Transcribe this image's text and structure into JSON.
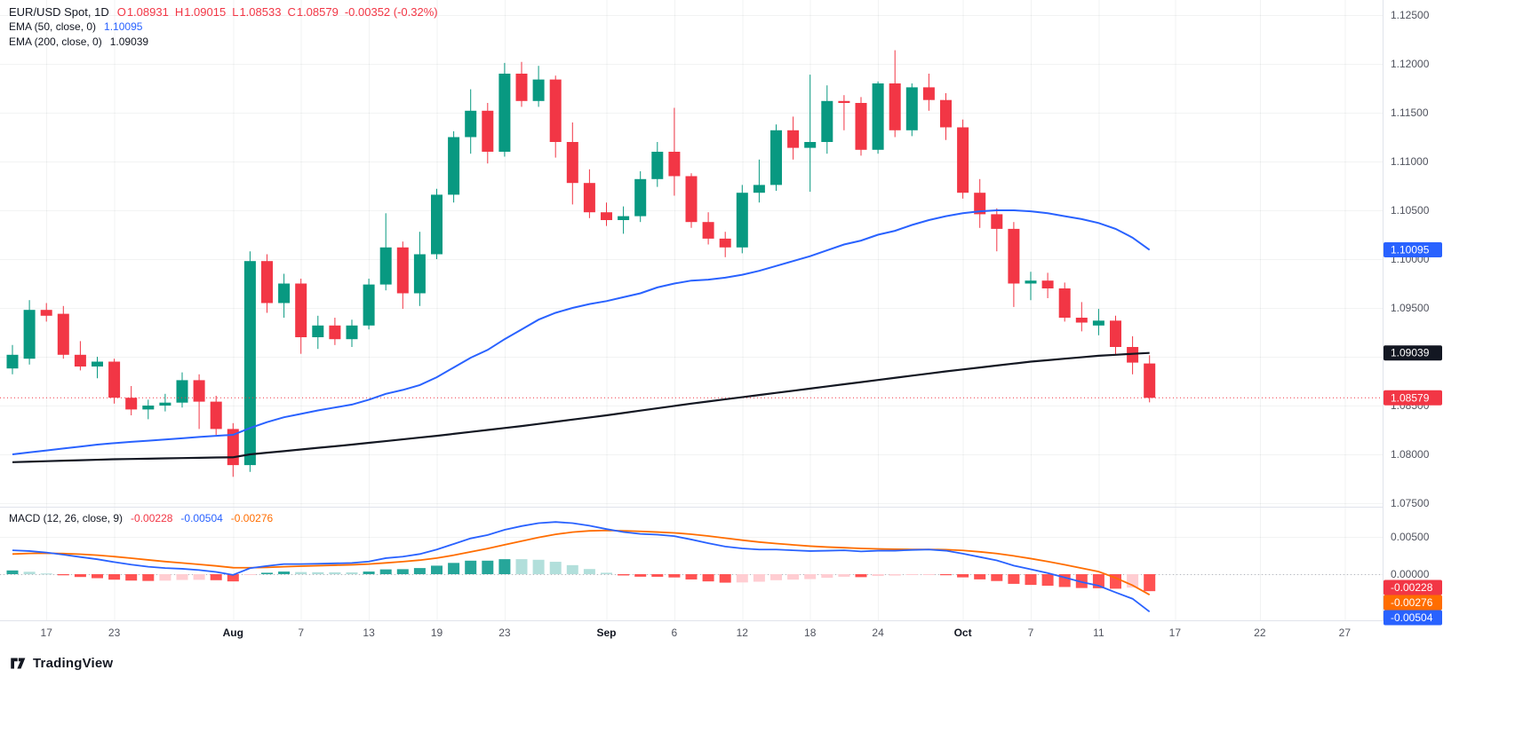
{
  "header": {
    "symbol_title": "EUR/USD Spot, 1D",
    "ohlc_color": "#F23645",
    "ohlc_items": [
      {
        "k": "O",
        "v": "1.08931"
      },
      {
        "k": "H",
        "v": "1.09015"
      },
      {
        "k": "L",
        "v": "1.08533"
      },
      {
        "k": "C",
        "v": "1.08579"
      }
    ],
    "change": "-0.00352 (-0.32%)",
    "indicators": [
      {
        "name": "EMA (50, close, 0)",
        "value": "1.10095",
        "color": "#2962FF"
      },
      {
        "name": "EMA (200, close, 0)",
        "value": "1.09039",
        "color": "#131722"
      }
    ]
  },
  "macd_legend": {
    "name": "MACD (12, 26, close, 9)",
    "values": [
      {
        "text": "-0.00228",
        "color": "#F23645"
      },
      {
        "text": "-0.00504",
        "color": "#2962FF"
      },
      {
        "text": "-0.00276",
        "color": "#FF6D00"
      }
    ]
  },
  "footer": {
    "logo_text": "TradingView"
  },
  "chart_data": [
    {
      "type": "candlestick",
      "title": "EUR/USD Spot, 1D",
      "colors": {
        "up": "#089981",
        "down": "#F23645"
      },
      "last_price": 1.08579,
      "ylim": [
        1.0747,
        1.1266
      ],
      "y_ticks": [
        1.125,
        1.12,
        1.115,
        1.11,
        1.105,
        1.1,
        1.095,
        1.09,
        1.085,
        1.08,
        1.075
      ],
      "x_ticks": [
        {
          "label": "17",
          "i": 2
        },
        {
          "label": "23",
          "i": 6
        },
        {
          "label": "Aug",
          "i": 13,
          "major": true
        },
        {
          "label": "7",
          "i": 17
        },
        {
          "label": "13",
          "i": 21
        },
        {
          "label": "19",
          "i": 25
        },
        {
          "label": "23",
          "i": 29
        },
        {
          "label": "Sep",
          "i": 35,
          "major": true
        },
        {
          "label": "6",
          "i": 39
        },
        {
          "label": "12",
          "i": 43
        },
        {
          "label": "18",
          "i": 47
        },
        {
          "label": "24",
          "i": 51
        },
        {
          "label": "Oct",
          "i": 56,
          "major": true
        },
        {
          "label": "7",
          "i": 60
        },
        {
          "label": "11",
          "i": 64
        },
        {
          "label": "17",
          "i": 68.5
        },
        {
          "label": "22",
          "i": 73.5
        },
        {
          "label": "27",
          "i": 78.5
        }
      ],
      "price_labels": [
        {
          "value": 1.10095,
          "bg": "#2962FF"
        },
        {
          "value": 1.09039,
          "bg": "#131722"
        },
        {
          "value": 1.08579,
          "bg": "#F23645",
          "dotted_line": true
        }
      ],
      "series": [
        {
          "name": "EURUSD",
          "type": "ohlc",
          "ohlc": [
            [
              1.0888,
              1.0912,
              1.0882,
              1.0902
            ],
            [
              1.0898,
              1.0958,
              1.0892,
              1.0948
            ],
            [
              1.0948,
              1.0955,
              1.0936,
              1.0942
            ],
            [
              1.0944,
              1.0952,
              1.0898,
              1.0902
            ],
            [
              1.0902,
              1.0916,
              1.0886,
              1.089
            ],
            [
              1.089,
              1.09,
              1.0878,
              1.0895
            ],
            [
              1.0895,
              1.0898,
              1.0852,
              1.0858
            ],
            [
              1.0858,
              1.087,
              1.084,
              1.0846
            ],
            [
              1.0846,
              1.0856,
              1.0836,
              1.085
            ],
            [
              1.085,
              1.0862,
              1.0844,
              1.0853
            ],
            [
              1.0853,
              1.0884,
              1.0848,
              1.0876
            ],
            [
              1.0876,
              1.0882,
              1.0826,
              1.0854
            ],
            [
              1.0854,
              1.086,
              1.082,
              1.0826
            ],
            [
              1.0826,
              1.0832,
              1.0777,
              1.0789
            ],
            [
              1.0789,
              1.1008,
              1.0782,
              1.0998
            ],
            [
              1.0998,
              1.1005,
              1.0945,
              1.0955
            ],
            [
              1.0955,
              1.0985,
              1.094,
              1.0975
            ],
            [
              1.0975,
              1.098,
              1.0903,
              1.092
            ],
            [
              1.092,
              1.0942,
              1.0908,
              1.0932
            ],
            [
              1.0932,
              1.094,
              1.0912,
              1.0918
            ],
            [
              1.0918,
              1.0938,
              1.091,
              1.0932
            ],
            [
              1.0932,
              1.098,
              1.0928,
              1.0974
            ],
            [
              1.0974,
              1.1047,
              1.0968,
              1.1012
            ],
            [
              1.1012,
              1.1018,
              1.0949,
              1.0965
            ],
            [
              1.0965,
              1.1028,
              1.0952,
              1.1005
            ],
            [
              1.1005,
              1.1072,
              1.1,
              1.1066
            ],
            [
              1.1066,
              1.1131,
              1.1058,
              1.1125
            ],
            [
              1.1125,
              1.1174,
              1.1108,
              1.1152
            ],
            [
              1.1152,
              1.116,
              1.1098,
              1.111
            ],
            [
              1.111,
              1.1201,
              1.1105,
              1.119
            ],
            [
              1.119,
              1.1202,
              1.1156,
              1.1162
            ],
            [
              1.1162,
              1.1198,
              1.1156,
              1.1184
            ],
            [
              1.1184,
              1.1188,
              1.1104,
              1.112
            ],
            [
              1.112,
              1.114,
              1.1056,
              1.1078
            ],
            [
              1.1078,
              1.1092,
              1.1042,
              1.1048
            ],
            [
              1.1048,
              1.1058,
              1.1034,
              1.104
            ],
            [
              1.104,
              1.1054,
              1.1026,
              1.1044
            ],
            [
              1.1044,
              1.109,
              1.1038,
              1.1082
            ],
            [
              1.1082,
              1.112,
              1.1074,
              1.111
            ],
            [
              1.111,
              1.1155,
              1.1065,
              1.1085
            ],
            [
              1.1085,
              1.1088,
              1.1032,
              1.1038
            ],
            [
              1.1038,
              1.1048,
              1.1015,
              1.1021
            ],
            [
              1.1021,
              1.1028,
              1.1002,
              1.1012
            ],
            [
              1.1012,
              1.1076,
              1.1006,
              1.1068
            ],
            [
              1.1068,
              1.1102,
              1.1058,
              1.1076
            ],
            [
              1.1076,
              1.1138,
              1.107,
              1.1132
            ],
            [
              1.1132,
              1.1146,
              1.1102,
              1.1114
            ],
            [
              1.1114,
              1.1189,
              1.1069,
              1.112
            ],
            [
              1.112,
              1.1178,
              1.1108,
              1.1162
            ],
            [
              1.1162,
              1.1168,
              1.1132,
              1.116
            ],
            [
              1.116,
              1.1166,
              1.1106,
              1.1112
            ],
            [
              1.1112,
              1.1182,
              1.1108,
              1.118
            ],
            [
              1.118,
              1.1214,
              1.1125,
              1.1132
            ],
            [
              1.1132,
              1.118,
              1.1126,
              1.1176
            ],
            [
              1.1176,
              1.119,
              1.1152,
              1.1163
            ],
            [
              1.1163,
              1.117,
              1.1122,
              1.1135
            ],
            [
              1.1135,
              1.1143,
              1.1062,
              1.1068
            ],
            [
              1.1068,
              1.1082,
              1.1032,
              1.1046
            ],
            [
              1.1046,
              1.1052,
              1.1008,
              1.1031
            ],
            [
              1.1031,
              1.1038,
              1.0951,
              1.0975
            ],
            [
              1.0975,
              1.0987,
              1.0958,
              1.0978
            ],
            [
              1.0978,
              1.0986,
              1.096,
              1.097
            ],
            [
              1.097,
              1.0976,
              1.0936,
              1.094
            ],
            [
              1.094,
              1.0956,
              1.0926,
              1.0935
            ],
            [
              1.0932,
              1.0949,
              1.0922,
              1.0937
            ],
            [
              1.0937,
              1.0942,
              1.0902,
              1.091
            ],
            [
              1.091,
              1.0921,
              1.0882,
              1.0894
            ],
            [
              1.08931,
              1.09015,
              1.08533,
              1.08579
            ]
          ]
        },
        {
          "name": "EMA (50, close, 0)",
          "type": "line",
          "color": "#2962FF",
          "values": [
            1.08,
            1.0802,
            1.0804,
            1.0806,
            1.0808,
            1.081,
            1.08115,
            1.08128,
            1.0814,
            1.08152,
            1.08165,
            1.08178,
            1.0819,
            1.082,
            1.0827,
            1.0833,
            1.0838,
            1.08415,
            1.0845,
            1.0848,
            1.0851,
            1.0856,
            1.0862,
            1.0866,
            1.0871,
            1.0879,
            1.0889,
            1.0899,
            1.0907,
            1.0918,
            1.0928,
            1.0938,
            1.0945,
            1.095,
            1.0954,
            1.0957,
            1.0961,
            1.0965,
            1.0971,
            1.0975,
            1.0978,
            1.0979,
            1.0981,
            1.0984,
            1.0988,
            1.0993,
            1.0998,
            1.1003,
            1.1009,
            1.1015,
            1.1019,
            1.1025,
            1.1029,
            1.1035,
            1.104,
            1.1044,
            1.1047,
            1.1049,
            1.105,
            1.105,
            1.1049,
            1.1047,
            1.1044,
            1.1041,
            1.1037,
            1.1031,
            1.1022,
            1.10095
          ]
        },
        {
          "name": "EMA (200, close, 0)",
          "type": "line",
          "color": "#131722",
          "values": [
            1.0792,
            1.07925,
            1.0793,
            1.07935,
            1.0794,
            1.07945,
            1.0795,
            1.07953,
            1.07956,
            1.07959,
            1.07962,
            1.07965,
            1.07968,
            1.0797,
            1.08,
            1.08017,
            1.08033,
            1.0805,
            1.08067,
            1.08083,
            1.081,
            1.08118,
            1.08136,
            1.08154,
            1.08172,
            1.0819,
            1.0821,
            1.0823,
            1.0825,
            1.0827,
            1.0829,
            1.08312,
            1.08334,
            1.08356,
            1.08378,
            1.084,
            1.08424,
            1.08448,
            1.08472,
            1.08496,
            1.0852,
            1.08542,
            1.08564,
            1.08586,
            1.08608,
            1.0863,
            1.08652,
            1.08674,
            1.08696,
            1.08718,
            1.0874,
            1.08762,
            1.08784,
            1.08806,
            1.08828,
            1.0885,
            1.0887,
            1.0889,
            1.0891,
            1.0893,
            1.0895,
            1.08965,
            1.0898,
            1.08995,
            1.0901,
            1.0902,
            1.0903,
            1.09039
          ]
        }
      ]
    },
    {
      "type": "macd",
      "title": "MACD (12, 26, close, 9)",
      "y_ticks": [
        0.005,
        0
      ],
      "ylim": [
        -0.0063,
        0.0086
      ],
      "histogram": "macd_minus_signal",
      "hist_colors": {
        "up": "#26A69A",
        "up_weak": "#B2DFDB",
        "down": "#FF5252",
        "down_weak": "#FFCDD2"
      },
      "value_labels": [
        {
          "value": -0.00228,
          "bg": "#F23645"
        },
        {
          "value": -0.00276,
          "bg": "#FF6D00"
        },
        {
          "value": -0.00504,
          "bg": "#2962FF"
        }
      ],
      "series": [
        {
          "name": "MACD",
          "color": "#2962FF",
          "values": [
            0.0032,
            0.0031,
            0.0029,
            0.00262,
            0.0023,
            0.002,
            0.00162,
            0.00128,
            0.001,
            0.00082,
            0.00072,
            0.00055,
            0.0003,
            -0.0001,
            0.0008,
            0.0011,
            0.00135,
            0.00135,
            0.0014,
            0.00145,
            0.0015,
            0.0017,
            0.00215,
            0.00235,
            0.0027,
            0.0033,
            0.00405,
            0.0048,
            0.00525,
            0.00595,
            0.00645,
            0.00685,
            0.007,
            0.00685,
            0.0065,
            0.00605,
            0.00565,
            0.0054,
            0.0053,
            0.0051,
            0.00465,
            0.00415,
            0.0037,
            0.00345,
            0.0033,
            0.0033,
            0.0032,
            0.0031,
            0.00315,
            0.0032,
            0.00305,
            0.00315,
            0.00315,
            0.00325,
            0.0033,
            0.00315,
            0.00275,
            0.0023,
            0.00185,
            0.00115,
            0.00065,
            0.00015,
            -0.00045,
            -0.00105,
            -0.00155,
            -0.00245,
            -0.0033,
            -0.00504
          ]
        },
        {
          "name": "Signal",
          "color": "#FF6D00",
          "values": [
            0.0027,
            0.00278,
            0.00281,
            0.00277,
            0.00268,
            0.00254,
            0.00236,
            0.00214,
            0.00191,
            0.00169,
            0.0015,
            0.00131,
            0.00111,
            0.00087,
            0.00086,
            0.00091,
            0.001,
            0.00107,
            0.00114,
            0.0012,
            0.00126,
            0.00135,
            0.00151,
            0.00168,
            0.00188,
            0.00216,
            0.00254,
            0.00299,
            0.00344,
            0.00394,
            0.00444,
            0.00492,
            0.00534,
            0.00564,
            0.00581,
            0.00586,
            0.00582,
            0.00574,
            0.00565,
            0.00554,
            0.00536,
            0.00512,
            0.00484,
            0.00456,
            0.00431,
            0.00411,
            0.00393,
            0.00376,
            0.00364,
            0.00355,
            0.00345,
            0.00339,
            0.00334,
            0.00332,
            0.00332,
            0.00329,
            0.00318,
            0.003,
            0.00277,
            0.00245,
            0.00209,
            0.0017,
            0.00127,
            0.00081,
            0.00034,
            -0.0005,
            -0.0015,
            -0.00276
          ]
        }
      ]
    }
  ]
}
